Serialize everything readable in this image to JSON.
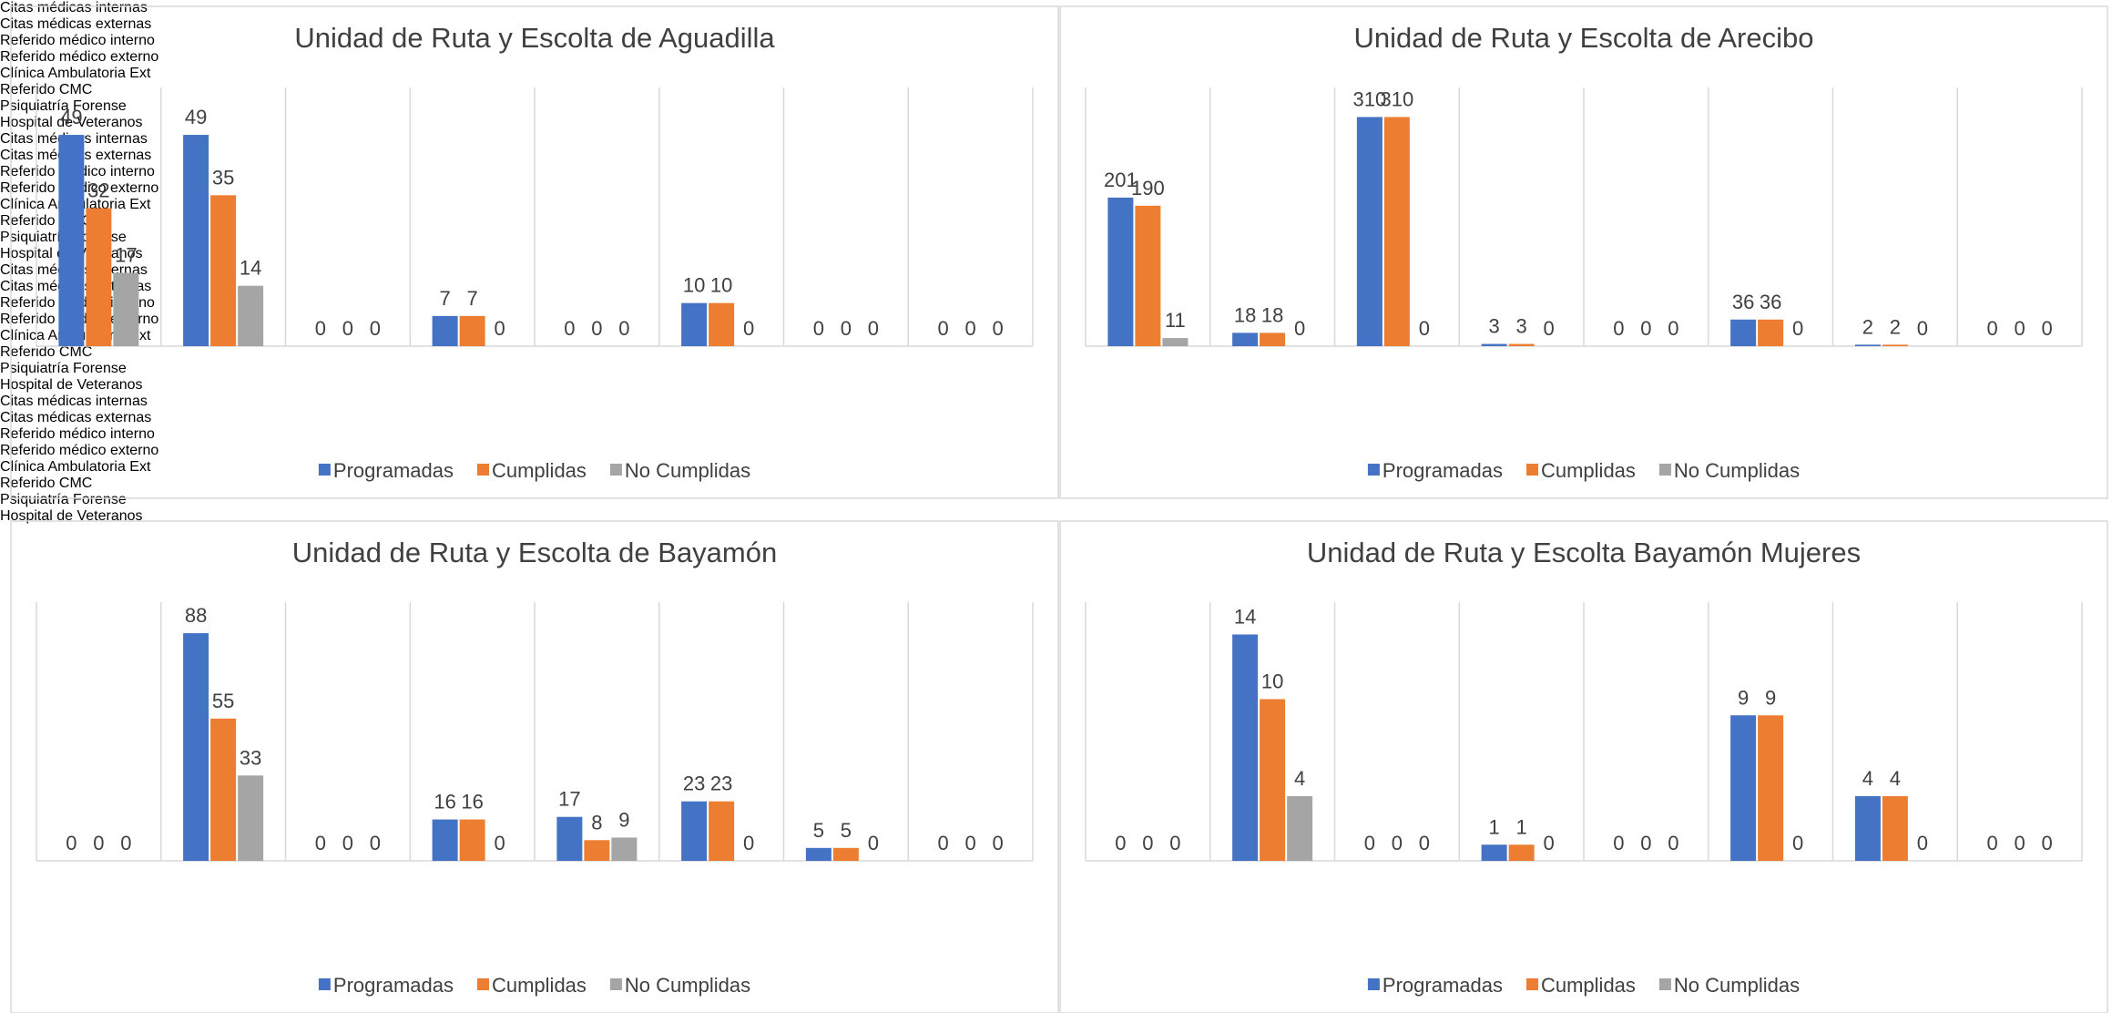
{
  "chart_data": [
    {
      "type": "bar",
      "title": "Unidad de Ruta y Escolta de Aguadilla",
      "categories": [
        "Citas médicas internas",
        "Citas médicas externas",
        "Referido médico interno",
        "Referido médico externo",
        "Clínica Ambulatoria Ext",
        "Referido CMC",
        "Psiquiatría Forense",
        "Hospital de Veteranos"
      ],
      "series": [
        {
          "name": "Programadas",
          "color": "#4472c4",
          "values": [
            49,
            49,
            0,
            7,
            0,
            10,
            0,
            0
          ]
        },
        {
          "name": "Cumplidas",
          "color": "#ed7d31",
          "values": [
            32,
            35,
            0,
            7,
            0,
            10,
            0,
            0
          ]
        },
        {
          "name": "No Cumplidas",
          "color": "#a5a5a5",
          "values": [
            17,
            14,
            0,
            0,
            0,
            0,
            0,
            0
          ]
        }
      ],
      "ylim": [
        0,
        60
      ],
      "legend": "bottom"
    },
    {
      "type": "bar",
      "title": "Unidad de Ruta y Escolta de Arecibo",
      "categories": [
        "Citas médicas internas",
        "Citas médicas externas",
        "Referido médico interno",
        "Referido médico externo",
        "Clínica Ambulatoria Ext",
        "Referido CMC",
        "Psiquiatría Forense",
        "Hospital de Veteranos"
      ],
      "series": [
        {
          "name": "Programadas",
          "color": "#4472c4",
          "values": [
            201,
            18,
            310,
            3,
            0,
            36,
            2,
            0
          ]
        },
        {
          "name": "Cumplidas",
          "color": "#ed7d31",
          "values": [
            190,
            18,
            310,
            3,
            0,
            36,
            2,
            0
          ]
        },
        {
          "name": "No Cumplidas",
          "color": "#a5a5a5",
          "values": [
            11,
            0,
            0,
            0,
            0,
            0,
            0,
            0
          ]
        }
      ],
      "ylim": [
        0,
        350
      ],
      "legend": "bottom"
    },
    {
      "type": "bar",
      "title": "Unidad de Ruta y Escolta de Bayamón",
      "categories": [
        "Citas médicas internas",
        "Citas médicas externas",
        "Referido médico interno",
        "Referido médico externo",
        "Clínica Ambulatoria Ext",
        "Referido CMC",
        "Psiquiatría Forense",
        "Hospital de Veteranos"
      ],
      "series": [
        {
          "name": "Programadas",
          "color": "#4472c4",
          "values": [
            0,
            88,
            0,
            16,
            17,
            23,
            5,
            0
          ]
        },
        {
          "name": "Cumplidas",
          "color": "#ed7d31",
          "values": [
            0,
            55,
            0,
            16,
            8,
            23,
            5,
            0
          ]
        },
        {
          "name": "No Cumplidas",
          "color": "#a5a5a5",
          "values": [
            0,
            33,
            0,
            0,
            9,
            0,
            0,
            0
          ]
        }
      ],
      "ylim": [
        0,
        100
      ],
      "legend": "bottom"
    },
    {
      "type": "bar",
      "title": "Unidad de Ruta y Escolta Bayamón Mujeres",
      "categories": [
        "Citas médicas internas",
        "Citas médicas externas",
        "Referido médico interno",
        "Referido médico externo",
        "Clínica Ambulatoria Ext",
        "Referido CMC",
        "Psiquiatría Forense",
        "Hospital de Veteranos"
      ],
      "series": [
        {
          "name": "Programadas",
          "color": "#4472c4",
          "values": [
            0,
            14,
            0,
            1,
            0,
            9,
            4,
            0
          ]
        },
        {
          "name": "Cumplidas",
          "color": "#ed7d31",
          "values": [
            0,
            10,
            0,
            1,
            0,
            9,
            4,
            0
          ]
        },
        {
          "name": "No Cumplidas",
          "color": "#a5a5a5",
          "values": [
            0,
            4,
            0,
            0,
            0,
            0,
            0,
            0
          ]
        }
      ],
      "ylim": [
        0,
        16
      ],
      "legend": "bottom"
    }
  ]
}
